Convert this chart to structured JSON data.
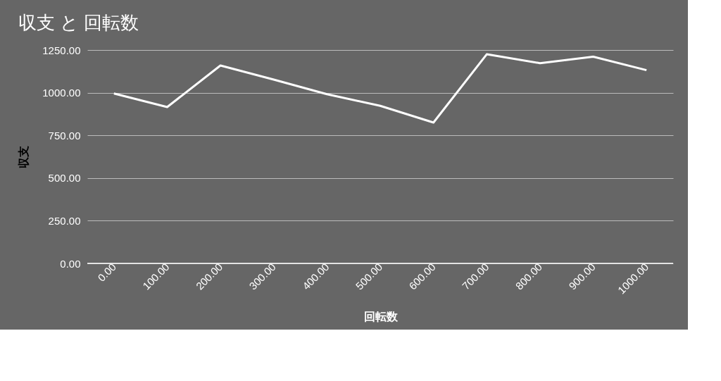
{
  "chart_data": {
    "type": "line",
    "title": "収支 と 回転数",
    "xlabel": "回転数",
    "ylabel": "収支",
    "x": [
      0,
      100,
      200,
      300,
      400,
      500,
      600,
      700,
      800,
      900,
      1000
    ],
    "series": [
      {
        "color": "#ffffff",
        "values": [
          995,
          916,
          1159,
          1077,
          991,
          923,
          825,
          1225,
          1173,
          1211,
          1132
        ]
      }
    ],
    "xlim": [
      -50,
      1050
    ],
    "xticks": [
      {
        "value": 0,
        "label": "0.00"
      },
      {
        "value": 100,
        "label": "100.00"
      },
      {
        "value": 200,
        "label": "200.00"
      },
      {
        "value": 300,
        "label": "300.00"
      },
      {
        "value": 400,
        "label": "400.00"
      },
      {
        "value": 500,
        "label": "500.00"
      },
      {
        "value": 600,
        "label": "600.00"
      },
      {
        "value": 700,
        "label": "700.00"
      },
      {
        "value": 800,
        "label": "800.00"
      },
      {
        "value": 900,
        "label": "900.00"
      },
      {
        "value": 1000,
        "label": "1000.00"
      }
    ],
    "ylim": [
      0,
      1250
    ],
    "yticks": [
      {
        "value": 0,
        "label": "0.00"
      },
      {
        "value": 250,
        "label": "250.00"
      },
      {
        "value": 500,
        "label": "500.00"
      },
      {
        "value": 750,
        "label": "750.00"
      },
      {
        "value": 1000,
        "label": "1000.00"
      },
      {
        "value": 1250,
        "label": "1250.00"
      }
    ],
    "grid": "y",
    "legend": false,
    "marker": "none",
    "line_style": "solid"
  }
}
